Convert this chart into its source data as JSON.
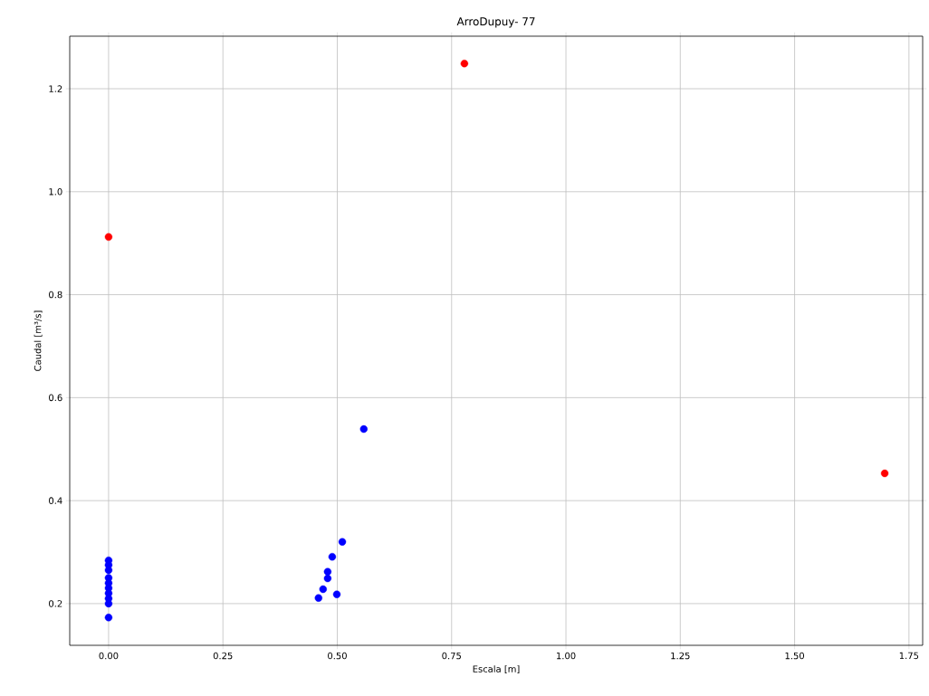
{
  "chart_data": {
    "type": "scatter",
    "title": "ArroDupuy- 77",
    "xlabel": "Escala [m]",
    "ylabel": "Caudal [m³/s]",
    "xlim": [
      -0.085,
      1.78
    ],
    "ylim": [
      0.119,
      1.302
    ],
    "xticks": [
      {
        "value": 0,
        "label": "0.00"
      },
      {
        "value": 0.25,
        "label": "0.25"
      },
      {
        "value": 0.5,
        "label": "0.50"
      },
      {
        "value": 0.75,
        "label": "0.75"
      },
      {
        "value": 1,
        "label": "1.00"
      },
      {
        "value": 1.25,
        "label": "1.25"
      },
      {
        "value": 1.5,
        "label": "1.50"
      },
      {
        "value": 1.75,
        "label": "1.75"
      }
    ],
    "yticks": [
      {
        "value": 0.2,
        "label": "0.2"
      },
      {
        "value": 0.4,
        "label": "0.4"
      },
      {
        "value": 0.6,
        "label": "0.6"
      },
      {
        "value": 0.8,
        "label": "0.8"
      },
      {
        "value": 1.0,
        "label": "1.0"
      },
      {
        "value": 1.2,
        "label": "1.2"
      }
    ],
    "grid": true,
    "marker": "circle",
    "series": [
      {
        "color": "#0000ff",
        "x": [
          0,
          0,
          0,
          0,
          0,
          0,
          0,
          0,
          0,
          0,
          0.558,
          0.511,
          0.489,
          0.479,
          0.479,
          0.469,
          0.459,
          0.499
        ],
        "values": [
          0.173,
          0.2,
          0.21,
          0.22,
          0.23,
          0.24,
          0.25,
          0.265,
          0.275,
          0.284,
          0.539,
          0.32,
          0.291,
          0.262,
          0.249,
          0.228,
          0.211,
          0.218
        ]
      },
      {
        "color": "#ff0000",
        "x": [
          0,
          0.778,
          1.697
        ],
        "values": [
          0.912,
          1.249,
          0.453
        ]
      }
    ]
  }
}
